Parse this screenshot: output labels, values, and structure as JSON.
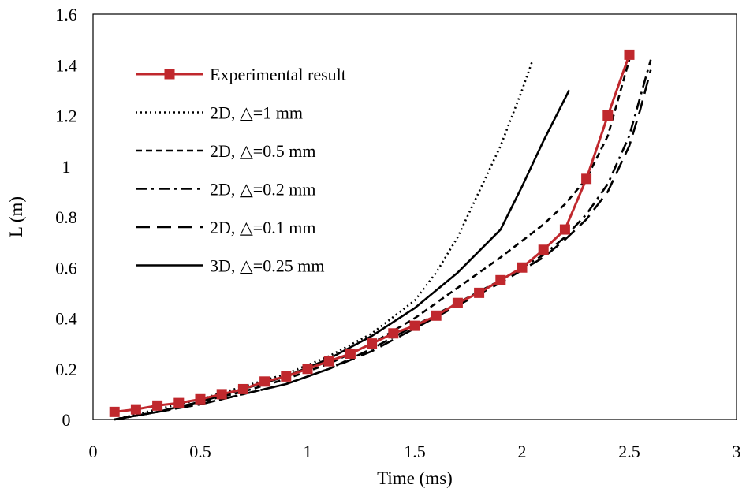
{
  "chart_data": {
    "type": "line",
    "xlabel": "Time (ms)",
    "ylabel": "L (m)",
    "xlim": [
      0,
      3
    ],
    "ylim": [
      0,
      1.6
    ],
    "xticks": [
      "0",
      "0.5",
      "1",
      "1.5",
      "2",
      "2.5",
      "3"
    ],
    "yticks": [
      "0",
      "0.2",
      "0.4",
      "0.6",
      "0.8",
      "1",
      "1.2",
      "1.4",
      "1.6"
    ],
    "grid": false,
    "legend_position": "top-left",
    "series": [
      {
        "name": "Experimental result",
        "color": "#c0282d",
        "dash": "solid",
        "marker": "square",
        "x": [
          0.1,
          0.2,
          0.3,
          0.4,
          0.5,
          0.6,
          0.7,
          0.8,
          0.9,
          1.0,
          1.1,
          1.2,
          1.3,
          1.4,
          1.5,
          1.6,
          1.7,
          1.8,
          1.9,
          2.0,
          2.1,
          2.2,
          2.3,
          2.4,
          2.5
        ],
        "y": [
          0.03,
          0.04,
          0.055,
          0.065,
          0.08,
          0.1,
          0.12,
          0.15,
          0.17,
          0.2,
          0.23,
          0.26,
          0.3,
          0.34,
          0.37,
          0.41,
          0.46,
          0.5,
          0.55,
          0.6,
          0.67,
          0.75,
          0.95,
          1.2,
          1.44
        ]
      },
      {
        "name": "2D, △=1 mm",
        "color": "#000000",
        "dash": "dotted",
        "x": [
          0.1,
          0.3,
          0.5,
          0.7,
          0.9,
          1.1,
          1.3,
          1.5,
          1.6,
          1.7,
          1.8,
          1.9,
          2.0,
          2.05
        ],
        "y": [
          0.0,
          0.04,
          0.08,
          0.13,
          0.18,
          0.25,
          0.34,
          0.47,
          0.58,
          0.72,
          0.9,
          1.08,
          1.3,
          1.42
        ]
      },
      {
        "name": "2D, △=0.5 mm",
        "color": "#000000",
        "dash": "short-dash",
        "x": [
          0.1,
          0.3,
          0.5,
          0.7,
          0.9,
          1.1,
          1.3,
          1.5,
          1.7,
          1.9,
          2.1,
          2.2,
          2.3,
          2.4,
          2.5
        ],
        "y": [
          0.0,
          0.03,
          0.07,
          0.11,
          0.16,
          0.22,
          0.3,
          0.4,
          0.52,
          0.64,
          0.77,
          0.85,
          0.95,
          1.12,
          1.42
        ]
      },
      {
        "name": "2D, △=0.2 mm",
        "color": "#000000",
        "dash": "dash-dot",
        "x": [
          0.1,
          0.3,
          0.5,
          0.7,
          0.9,
          1.1,
          1.3,
          1.5,
          1.7,
          1.9,
          2.1,
          2.2,
          2.3,
          2.4,
          2.5,
          2.55,
          2.6
        ],
        "y": [
          0.0,
          0.03,
          0.06,
          0.1,
          0.14,
          0.2,
          0.28,
          0.37,
          0.46,
          0.55,
          0.65,
          0.72,
          0.81,
          0.93,
          1.12,
          1.27,
          1.42
        ]
      },
      {
        "name": "2D, △=0.1 mm",
        "color": "#000000",
        "dash": "long-dash",
        "x": [
          0.1,
          0.3,
          0.5,
          0.7,
          0.9,
          1.1,
          1.3,
          1.5,
          1.7,
          1.9,
          2.1,
          2.2,
          2.3,
          2.4,
          2.5,
          2.55,
          2.6
        ],
        "y": [
          0.0,
          0.03,
          0.06,
          0.1,
          0.14,
          0.2,
          0.27,
          0.36,
          0.45,
          0.54,
          0.64,
          0.71,
          0.79,
          0.9,
          1.08,
          1.22,
          1.38
        ]
      },
      {
        "name": "3D, △=0.25 mm",
        "color": "#000000",
        "dash": "solid",
        "x": [
          0.1,
          0.3,
          0.5,
          0.7,
          0.9,
          1.1,
          1.3,
          1.5,
          1.7,
          1.9,
          2.0,
          2.1,
          2.22
        ],
        "y": [
          0.0,
          0.03,
          0.07,
          0.12,
          0.17,
          0.24,
          0.33,
          0.44,
          0.58,
          0.75,
          0.92,
          1.1,
          1.3
        ]
      }
    ]
  }
}
